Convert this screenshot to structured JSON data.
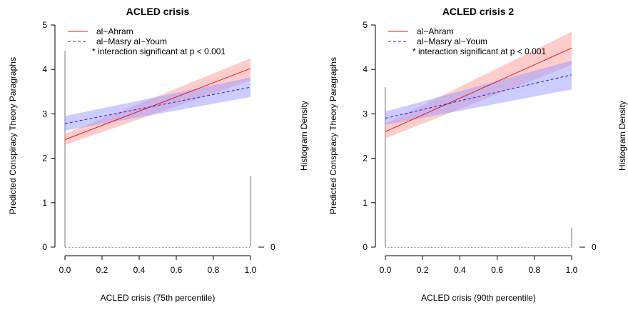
{
  "chart_data": [
    {
      "type": "line",
      "title": "ACLED crisis",
      "xlabel": "ACLED crisis (75th percentile)",
      "ylabel": "Predicted Conspiracy Theory Paragraphs",
      "ylabel_right": "Histogram Density",
      "xlim": [
        0,
        1
      ],
      "ylim": [
        0,
        5
      ],
      "x_ticks": [
        "0.0",
        "0.2",
        "0.4",
        "0.6",
        "0.8",
        "1.0"
      ],
      "y_ticks": [
        "0",
        "1",
        "2",
        "3",
        "4",
        "5"
      ],
      "right_ticks": [
        "0"
      ],
      "legend_position": "top-left",
      "annotation": "* interaction significant at p < 0.001",
      "series": [
        {
          "name": "al−Ahram",
          "color": "#e41a1c",
          "line_style": "solid",
          "band_color": "#ff9999",
          "x": [
            0,
            1
          ],
          "y": [
            2.42,
            4.02
          ],
          "lower": [
            2.3,
            3.75
          ],
          "upper": [
            2.55,
            4.25
          ]
        },
        {
          "name": "al−Masry al−Youm",
          "color": "#1f1fd6",
          "line_style": "dashed",
          "band_color": "#9999ff",
          "x": [
            0,
            1
          ],
          "y": [
            2.78,
            3.6
          ],
          "lower": [
            2.62,
            3.38
          ],
          "upper": [
            2.95,
            3.82
          ]
        }
      ],
      "histogram": {
        "x": [
          0,
          1
        ],
        "height": [
          4.42,
          1.6
        ]
      }
    },
    {
      "type": "line",
      "title": "ACLED crisis 2",
      "xlabel": "ACLED crisis (90th percentile)",
      "ylabel": "Predicted Conspiracy Theory Paragraphs",
      "ylabel_right": "Histogram Density",
      "xlim": [
        0,
        1
      ],
      "ylim": [
        0,
        5
      ],
      "x_ticks": [
        "0.0",
        "0.2",
        "0.4",
        "0.6",
        "0.8",
        "1.0"
      ],
      "y_ticks": [
        "0",
        "1",
        "2",
        "3",
        "4",
        "5"
      ],
      "right_ticks": [
        "0"
      ],
      "legend_position": "top-left",
      "annotation": "* interaction significant at p < 0.001",
      "series": [
        {
          "name": "al−Ahram",
          "color": "#e41a1c",
          "line_style": "solid",
          "band_color": "#ff9999",
          "x": [
            0,
            1
          ],
          "y": [
            2.6,
            4.48
          ],
          "lower": [
            2.45,
            4.1
          ],
          "upper": [
            2.78,
            4.85
          ]
        },
        {
          "name": "al−Masry al−Youm",
          "color": "#1f1fd6",
          "line_style": "dashed",
          "band_color": "#9999ff",
          "x": [
            0,
            1
          ],
          "y": [
            2.9,
            3.88
          ],
          "lower": [
            2.75,
            3.55
          ],
          "upper": [
            3.05,
            4.2
          ]
        }
      ],
      "histogram": {
        "x": [
          0,
          1
        ],
        "height": [
          3.6,
          0.43
        ]
      }
    }
  ]
}
